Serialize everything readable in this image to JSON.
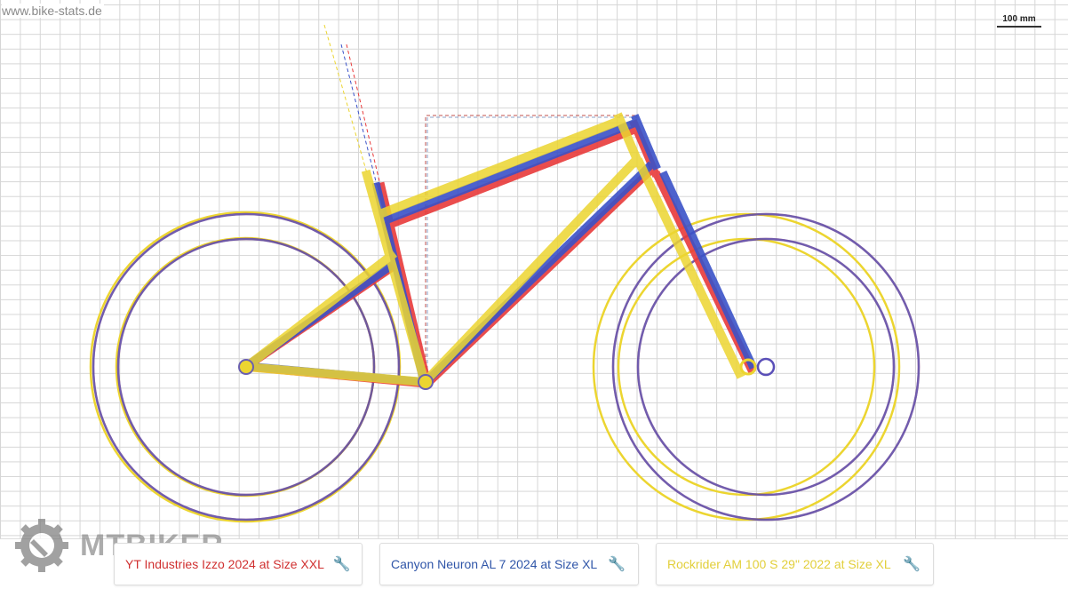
{
  "source_label": "www.bike-stats.de",
  "scale_label": "100 mm",
  "watermark": "MTBIKER",
  "bikes": [
    {
      "label": "YT Industries Izzo 2024 at Size XXL",
      "color": "#e83a3a",
      "icon": "wrench-icon"
    },
    {
      "label": "Canyon Neuron AL 7 2024 at Size XL",
      "color": "#3a52c8",
      "icon": "wrench-icon"
    },
    {
      "label": "Rockrider AM 100 S 29\" 2022 at Size XL",
      "color": "#ecd530",
      "icon": "wrench-icon"
    }
  ]
}
